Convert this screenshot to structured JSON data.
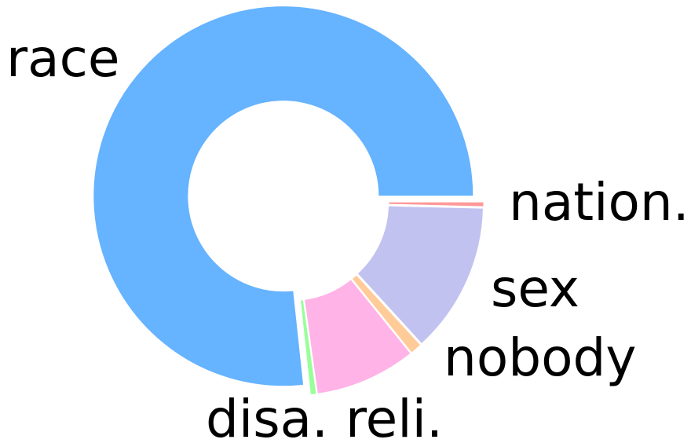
{
  "chart_data": {
    "type": "pie",
    "donut": true,
    "labels": [
      "race",
      "disa.",
      "reli.",
      "nobody",
      "sex",
      "nation."
    ],
    "values": [
      76.7,
      0.5,
      8.6,
      1.0,
      12.8,
      0.4
    ],
    "colors": [
      "#66b3ff",
      "#99ff99",
      "#ffb3e6",
      "#ffcc99",
      "#c2c2f0",
      "#ff9999"
    ],
    "start_angle": 0,
    "direction": "counterclockwise",
    "legend": "none"
  }
}
